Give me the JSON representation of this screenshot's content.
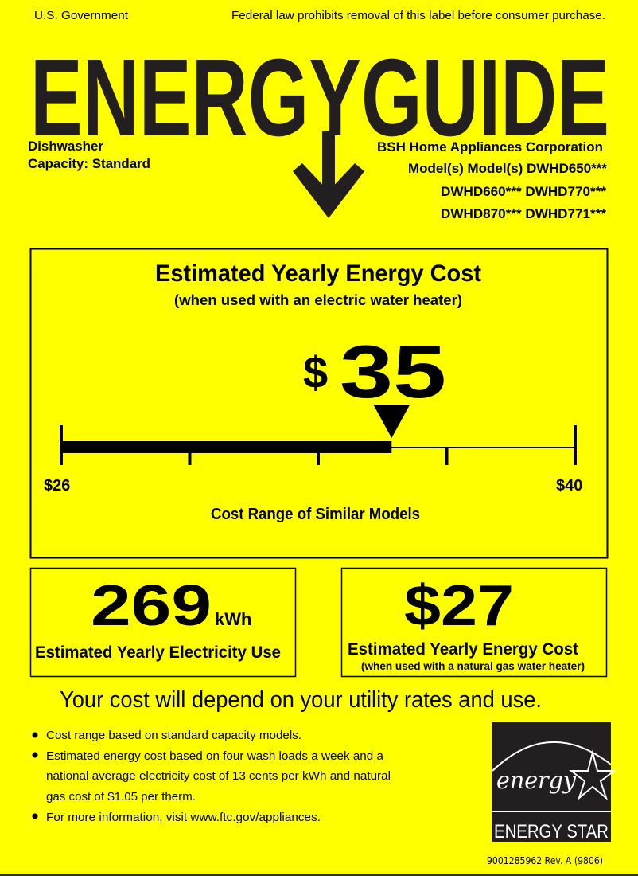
{
  "header": {
    "left": "U.S. Government",
    "right": "Federal law prohibits removal of this label before consumer purchase."
  },
  "logo_text": "ENERGYGUIDE",
  "appliance": {
    "type": "Dishwasher",
    "capacity": "Capacity: Standard"
  },
  "manufacturer": {
    "name": "BSH Home Appliances Corporation",
    "models_line1": "Model(s) Model(s) DWHD650***",
    "models_line2": "DWHD660*** DWHD770***",
    "models_line3": "DWHD870*** DWHD771***"
  },
  "main_cost": {
    "title": "Estimated Yearly Energy Cost",
    "subtitle": "(when used with an electric water heater)",
    "currency": "$",
    "value": "35",
    "range_min_label": "$26",
    "range_max_label": "$40",
    "range_min": 26,
    "range_max": 40,
    "cost": 35,
    "range_caption": "Cost Range of Similar Models"
  },
  "electricity": {
    "value": "269",
    "unit": "kWh",
    "label": "Estimated Yearly Electricity Use"
  },
  "gas_cost": {
    "value": "$27",
    "label": "Estimated Yearly Energy Cost",
    "sublabel": "(when used with a natural gas water heater)"
  },
  "disclaimer": "Your cost will depend on your utility rates and use.",
  "bullets": [
    "Cost range based on standard capacity models.",
    "Estimated energy cost based on four wash loads a week and a",
    "national average electricity cost of 13 cents per kWh and natural",
    "gas cost of $1.05 per therm.",
    "For more information, visit www.ftc.gov/appliances."
  ],
  "energy_star": {
    "script": "energy",
    "label": "ENERGY STAR"
  },
  "footer_code": "9001285962 Rev. A (9806)",
  "colors": {
    "background": "#ffff00",
    "ink": "#231f20"
  }
}
